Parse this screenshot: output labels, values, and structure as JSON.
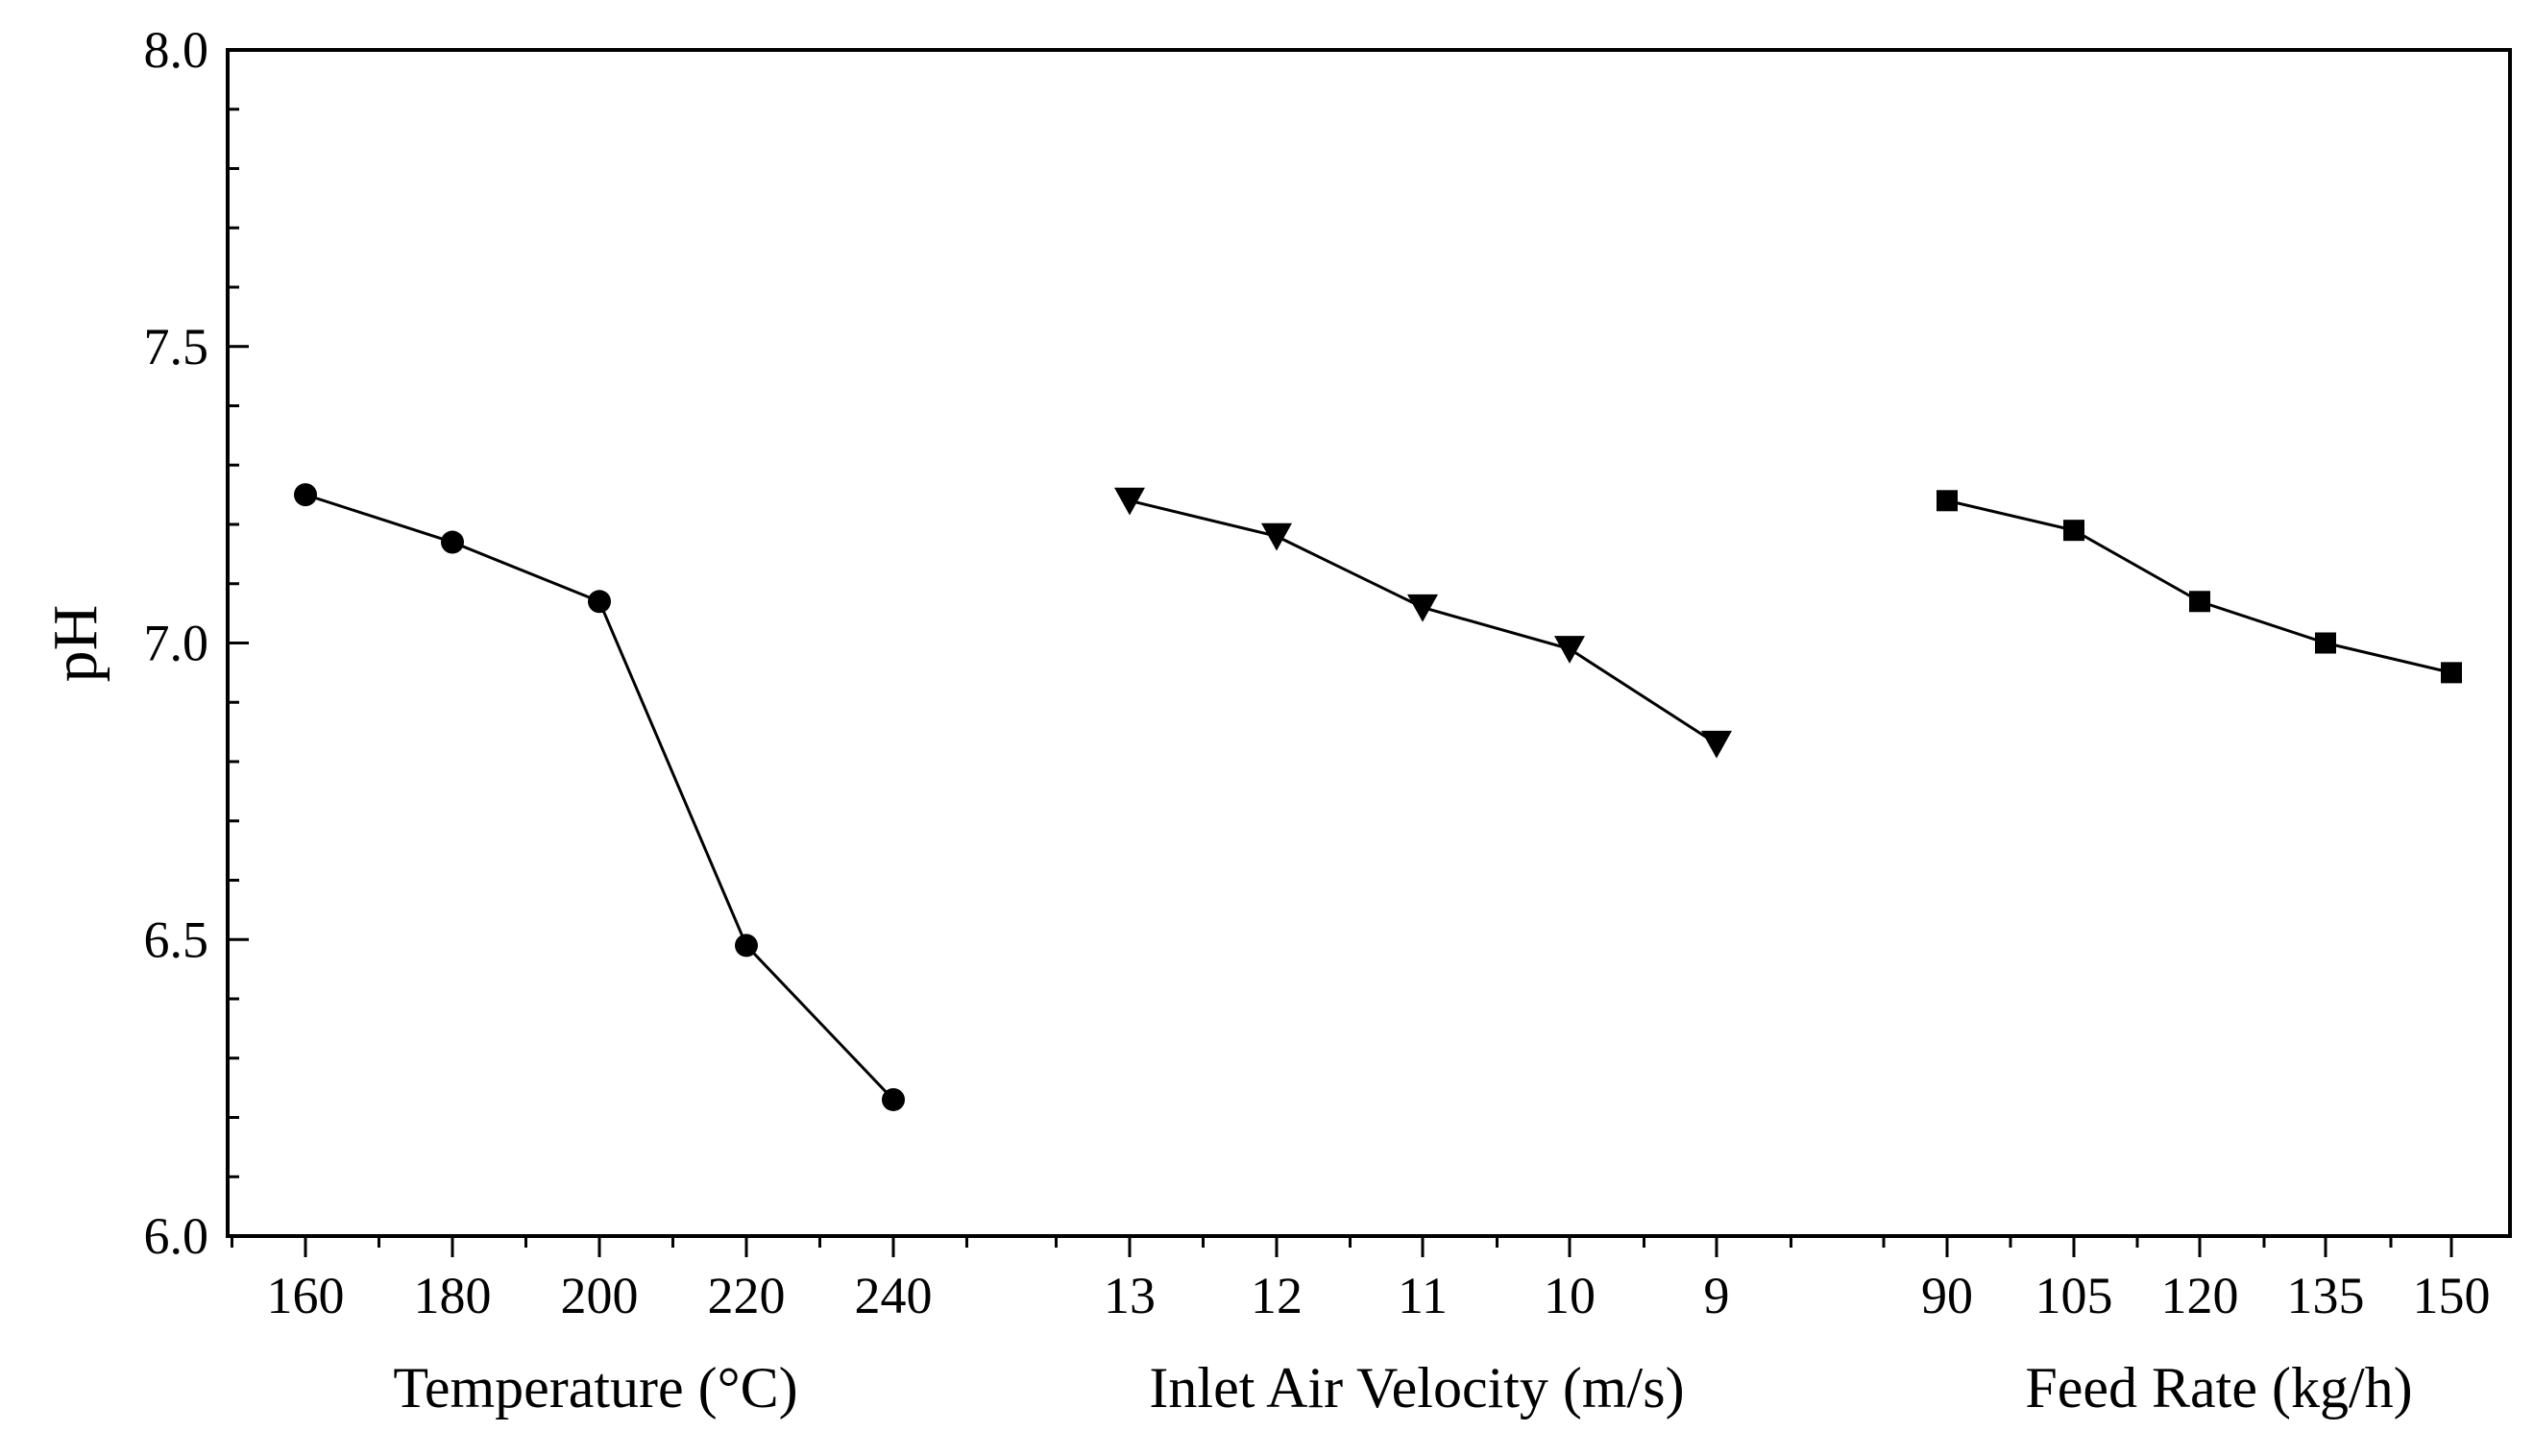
{
  "chart_data": {
    "type": "line",
    "title": "",
    "ylabel": "pH",
    "ylim": [
      6.0,
      8.0
    ],
    "yticks": [
      {
        "value": 6.0,
        "label": "6.0"
      },
      {
        "value": 6.5,
        "label": "6.5"
      },
      {
        "value": 7.0,
        "label": "7.0"
      },
      {
        "value": 7.5,
        "label": "7.5"
      },
      {
        "value": 8.0,
        "label": "8.0"
      }
    ],
    "grid": false,
    "panels": [
      {
        "name": "temperature",
        "xlabel": "Temperature (°C)",
        "marker": "circle",
        "categories": [
          "160",
          "180",
          "200",
          "220",
          "240"
        ],
        "values": [
          7.25,
          7.17,
          7.07,
          6.49,
          6.23
        ]
      },
      {
        "name": "inlet-air-velocity",
        "xlabel": "Inlet Air Velocity (m/s)",
        "marker": "triangle-down",
        "categories": [
          "13",
          "12",
          "11",
          "10",
          "9"
        ],
        "values": [
          7.24,
          7.18,
          7.06,
          6.99,
          6.83
        ]
      },
      {
        "name": "feed-rate",
        "xlabel": "Feed Rate (kg/h)",
        "marker": "square",
        "categories": [
          "90",
          "105",
          "120",
          "135",
          "150"
        ],
        "values": [
          7.24,
          7.19,
          7.07,
          7.0,
          6.95
        ]
      }
    ]
  }
}
